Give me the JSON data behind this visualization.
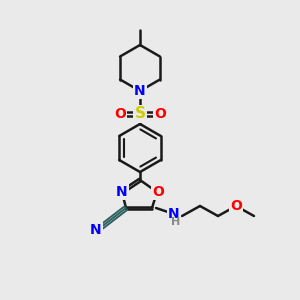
{
  "background_color": "#eaeaea",
  "line_color": "#1a1a1a",
  "bond_width": 1.8,
  "atom_colors": {
    "N": "#0000ff",
    "O": "#ff0000",
    "S": "#cccc00",
    "H": "#888888",
    "CN_dark": "#2d6060"
  },
  "font_size_atom": 10,
  "font_size_h": 8
}
